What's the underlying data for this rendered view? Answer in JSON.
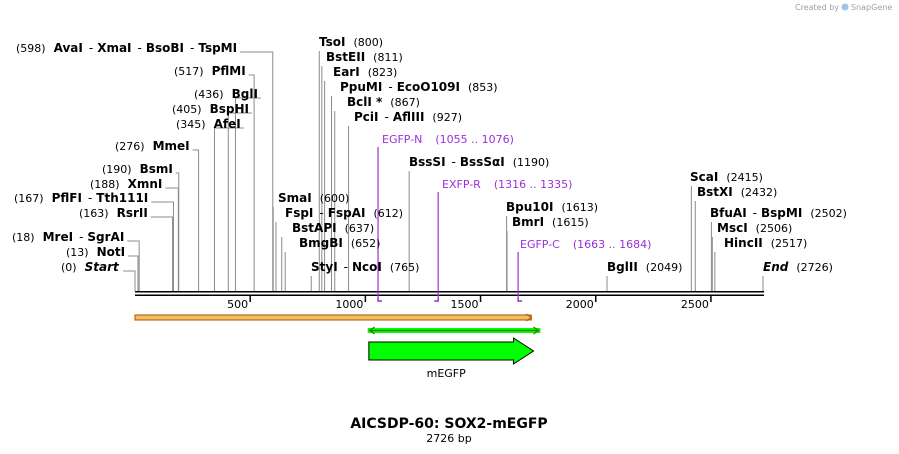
{
  "map": {
    "name": "AICSDP-60: SOX2-mEGFP",
    "length_text": "2726 bp",
    "length_bp": 2726,
    "credit": "Created by",
    "brand": "SnapGene",
    "ticks": [
      "500",
      "1000",
      "1500",
      "2000",
      "2500"
    ]
  },
  "sites": [
    {
      "pos": 598,
      "num": "(598)",
      "parts": [
        "AvaI",
        "XmaI",
        "BsoBI",
        "TspMI"
      ]
    },
    {
      "pos": 517,
      "num": "(517)",
      "parts": [
        "PflMI"
      ]
    },
    {
      "pos": 436,
      "num": "(436)",
      "parts": [
        "BglI"
      ]
    },
    {
      "pos": 405,
      "num": "(405)",
      "parts": [
        "BspHI"
      ]
    },
    {
      "pos": 345,
      "num": "(345)",
      "parts": [
        "AfeI"
      ]
    },
    {
      "pos": 276,
      "num": "(276)",
      "parts": [
        "MmeI"
      ]
    },
    {
      "pos": 190,
      "num": "(190)",
      "parts": [
        "BsmI"
      ]
    },
    {
      "pos": 188,
      "num": "(188)",
      "parts": [
        "XmnI"
      ]
    },
    {
      "pos": 167,
      "num": "(167)",
      "parts": [
        "PflFI",
        "Tth111I"
      ]
    },
    {
      "pos": 163,
      "num": "(163)",
      "parts": [
        "RsrII"
      ]
    },
    {
      "pos": 18,
      "num": "(18)",
      "parts": [
        "MreI",
        "SgrAI"
      ]
    },
    {
      "pos": 13,
      "num": "(13)",
      "parts": [
        "NotI"
      ]
    },
    {
      "pos": 0,
      "num": "(0)",
      "parts": [
        "Start"
      ]
    },
    {
      "pos": 800,
      "num": "(800)",
      "parts": [
        "TsoI"
      ]
    },
    {
      "pos": 811,
      "num": "(811)",
      "parts": [
        "BstEII"
      ]
    },
    {
      "pos": 823,
      "num": "(823)",
      "parts": [
        "EarI"
      ]
    },
    {
      "pos": 853,
      "num": "(853)",
      "parts": [
        "PpuMI",
        "EcoO109I"
      ]
    },
    {
      "pos": 867,
      "num": "(867)",
      "parts": [
        "BclI *"
      ]
    },
    {
      "pos": 927,
      "num": "(927)",
      "parts": [
        "PciI",
        "AflIII"
      ]
    },
    {
      "pos": 600,
      "num": "(600)",
      "parts": [
        "SmaI"
      ]
    },
    {
      "pos": 612,
      "num": "(612)",
      "parts": [
        "FspI",
        "FspAI"
      ]
    },
    {
      "pos": 637,
      "num": "(637)",
      "parts": [
        "BstAPI"
      ]
    },
    {
      "pos": 652,
      "num": "(652)",
      "parts": [
        "BmgBI"
      ]
    },
    {
      "pos": 765,
      "num": "(765)",
      "parts": [
        "StyI",
        "NcoI"
      ]
    },
    {
      "pos": 1190,
      "num": "(1190)",
      "parts": [
        "BssSI",
        "BssSαI"
      ]
    },
    {
      "pos": 1613,
      "num": "(1613)",
      "parts": [
        "Bpu10I"
      ]
    },
    {
      "pos": 1615,
      "num": "(1615)",
      "parts": [
        "BmrI"
      ]
    },
    {
      "pos": 2049,
      "num": "(2049)",
      "parts": [
        "BglII"
      ]
    },
    {
      "pos": 2415,
      "num": "(2415)",
      "parts": [
        "ScaI"
      ]
    },
    {
      "pos": 2432,
      "num": "(2432)",
      "parts": [
        "BstXI"
      ]
    },
    {
      "pos": 2502,
      "num": "(2502)",
      "parts": [
        "BfuAI",
        "BspMI"
      ]
    },
    {
      "pos": 2506,
      "num": "(2506)",
      "parts": [
        "MscI"
      ]
    },
    {
      "pos": 2517,
      "num": "(2517)",
      "parts": [
        "HincII"
      ]
    },
    {
      "pos": 2726,
      "num": "(2726)",
      "parts": [
        "End"
      ]
    }
  ],
  "primers": [
    {
      "name": "EGFP-N",
      "range": "(1055 .. 1076)",
      "start": 1055,
      "end": 1076,
      "strand": "forward"
    },
    {
      "name": "EXFP-R",
      "range": "(1316 .. 1335)",
      "start": 1316,
      "end": 1335,
      "strand": "reverse"
    },
    {
      "name": "EGFP-C",
      "range": "(1663 .. 1684)",
      "start": 1663,
      "end": 1684,
      "strand": "forward"
    }
  ],
  "features": [
    {
      "name": "",
      "start": 0,
      "end": 1720,
      "type": "homology-arm"
    },
    {
      "name": "",
      "start": 1010,
      "end": 1760,
      "type": "bidirectional"
    },
    {
      "name": "mEGFP",
      "start": 1015,
      "end": 1730,
      "type": "cds"
    }
  ],
  "colors": {
    "primer": "#9b30d9",
    "egfp": "#00ff00",
    "egfp_edge": "#2a7f00",
    "arm": "#f0c060",
    "arm_edge": "#b05000",
    "backbone": "#000000",
    "leader": "#8c8c8c"
  }
}
